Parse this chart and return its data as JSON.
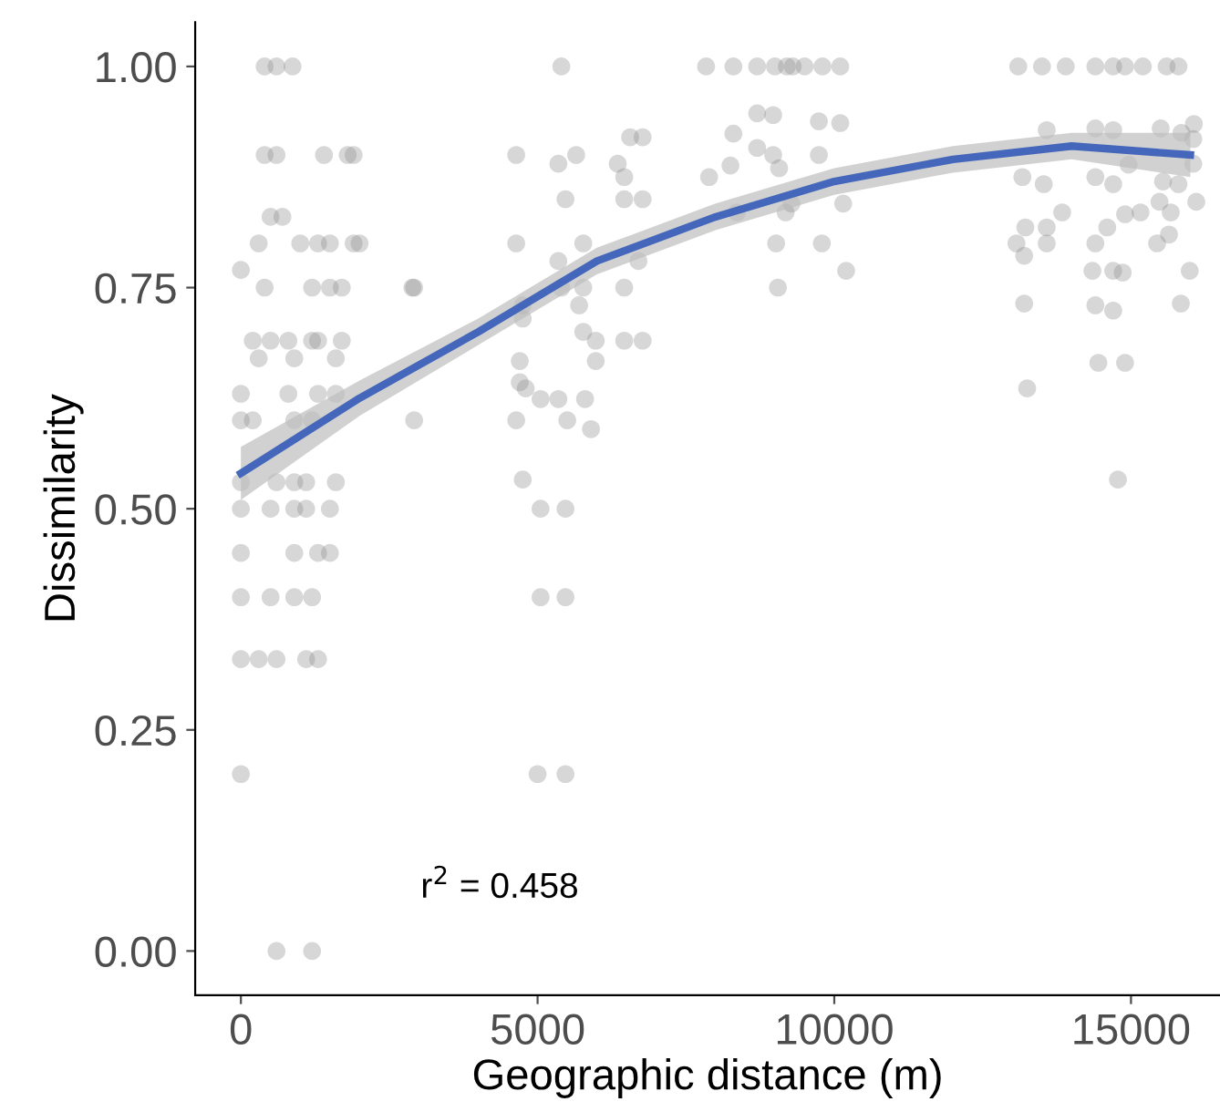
{
  "chart_data": {
    "type": "scatter",
    "xlabel": "Geographic distance (m)",
    "ylabel": "Dissimilarity",
    "xlim": [
      -770,
      16500
    ],
    "ylim": [
      -0.05,
      1.05
    ],
    "xticks": [
      0,
      5000,
      10000,
      15000
    ],
    "yticks": [
      {
        "value": 0,
        "label": "0.00"
      },
      {
        "value": 0.25,
        "label": "0.25"
      },
      {
        "value": 0.5,
        "label": "0.50"
      },
      {
        "value": 0.75,
        "label": "0.75"
      },
      {
        "value": 1,
        "label": "1.00"
      }
    ],
    "grid": false,
    "annotations": [
      "r$^{2}$ = 0.458"
    ],
    "series": [
      {
        "marker": "circle",
        "color": "#8c8c8c",
        "x": [
          400,
          600,
          870,
          400,
          600,
          1400,
          1800,
          1900,
          500,
          700,
          300,
          1000,
          1300,
          1500,
          1900,
          2000,
          0,
          400,
          1200,
          1500,
          1700,
          2890,
          2920,
          200,
          500,
          800,
          1200,
          1300,
          1700,
          300,
          900,
          1600,
          0,
          800,
          1300,
          1600,
          0,
          200,
          900,
          1200,
          2920,
          0,
          600,
          900,
          1100,
          1600,
          0,
          500,
          900,
          1100,
          1500,
          0,
          900,
          1300,
          1500,
          0,
          500,
          900,
          1200,
          0,
          300,
          600,
          1100,
          1300,
          0,
          600,
          1200,
          5400,
          4640,
          5350,
          5650,
          6560,
          6770,
          6350,
          6460,
          5470,
          6460,
          6770,
          4640,
          5770,
          6700,
          5350,
          5400,
          5770,
          6460,
          4750,
          5700,
          4750,
          5770,
          5980,
          6460,
          6770,
          4700,
          5980,
          4700,
          4800,
          5050,
          5350,
          5800,
          4640,
          5500,
          5900,
          4750,
          5050,
          5470,
          5050,
          5470,
          5000,
          5470,
          7840,
          8300,
          8700,
          9000,
          9200,
          9300,
          9500,
          9800,
          10100,
          13100,
          13500,
          13900,
          14400,
          14700,
          14900,
          15200,
          15600,
          15800,
          8700,
          8300,
          8970,
          9740,
          10100,
          8700,
          8250,
          7890,
          8970,
          9070,
          9740,
          8360,
          9180,
          9280,
          10150,
          9020,
          9790,
          10200,
          9050,
          13580,
          14400,
          14700,
          15500,
          16060,
          15850,
          16050,
          14960,
          13170,
          13530,
          14400,
          14700,
          15540,
          15800,
          16050,
          13840,
          13220,
          13580,
          14600,
          14900,
          15160,
          15670,
          16100,
          15480,
          13070,
          13580,
          14400,
          15440,
          15640,
          13200,
          14350,
          14700,
          14860,
          15990,
          13200,
          14400,
          14700,
          15840,
          14450,
          14900,
          13250,
          14780
        ],
        "values": [
          1,
          1,
          1,
          0.9,
          0.9,
          0.9,
          0.9,
          0.9,
          0.83,
          0.83,
          0.8,
          0.8,
          0.8,
          0.8,
          0.8,
          0.8,
          0.77,
          0.75,
          0.75,
          0.75,
          0.75,
          0.75,
          0.75,
          0.69,
          0.69,
          0.69,
          0.69,
          0.69,
          0.69,
          0.67,
          0.67,
          0.67,
          0.63,
          0.63,
          0.63,
          0.63,
          0.6,
          0.6,
          0.6,
          0.6,
          0.6,
          0.53,
          0.53,
          0.53,
          0.53,
          0.53,
          0.5,
          0.5,
          0.5,
          0.5,
          0.5,
          0.45,
          0.45,
          0.45,
          0.45,
          0.4,
          0.4,
          0.4,
          0.4,
          0.33,
          0.33,
          0.33,
          0.33,
          0.33,
          0.2,
          0,
          0,
          1,
          0.9,
          0.89,
          0.9,
          0.92,
          0.92,
          0.89,
          0.875,
          0.85,
          0.85,
          0.85,
          0.8,
          0.8,
          0.78,
          0.78,
          0.75,
          0.75,
          0.75,
          0.73,
          0.73,
          0.715,
          0.7,
          0.69,
          0.69,
          0.69,
          0.667,
          0.667,
          0.643,
          0.636,
          0.624,
          0.624,
          0.624,
          0.6,
          0.6,
          0.59,
          0.533,
          0.5,
          0.5,
          0.4,
          0.4,
          0.2,
          0.2,
          1,
          1,
          1,
          1,
          1,
          1,
          1,
          1,
          1,
          1,
          1,
          1,
          1,
          1,
          1,
          1,
          1,
          1,
          0.947,
          0.924,
          0.945,
          0.938,
          0.936,
          0.908,
          0.888,
          0.875,
          0.9,
          0.885,
          0.9,
          0.835,
          0.835,
          0.845,
          0.845,
          0.8,
          0.8,
          0.769,
          0.75,
          0.928,
          0.93,
          0.928,
          0.93,
          0.935,
          0.925,
          0.918,
          0.889,
          0.875,
          0.867,
          0.875,
          0.867,
          0.87,
          0.867,
          0.89,
          0.835,
          0.818,
          0.818,
          0.818,
          0.833,
          0.835,
          0.835,
          0.847,
          0.847,
          0.8,
          0.8,
          0.8,
          0.8,
          0.81,
          0.786,
          0.769,
          0.769,
          0.767,
          0.769,
          0.732,
          0.73,
          0.724,
          0.732,
          0.665,
          0.665,
          0.636,
          0.533
        ]
      },
      {
        "type": "line",
        "marker": "none",
        "color": "#4466bb",
        "x": [
          0,
          2000,
          4000,
          6000,
          8000,
          10000,
          12000,
          14000,
          16000
        ],
        "values": [
          0.54,
          0.625,
          0.7,
          0.78,
          0.83,
          0.87,
          0.895,
          0.91,
          0.9
        ],
        "lower": [
          0.51,
          0.605,
          0.685,
          0.765,
          0.815,
          0.855,
          0.88,
          0.895,
          0.875
        ],
        "upper": [
          0.57,
          0.645,
          0.715,
          0.795,
          0.845,
          0.885,
          0.91,
          0.925,
          0.925
        ]
      }
    ]
  }
}
